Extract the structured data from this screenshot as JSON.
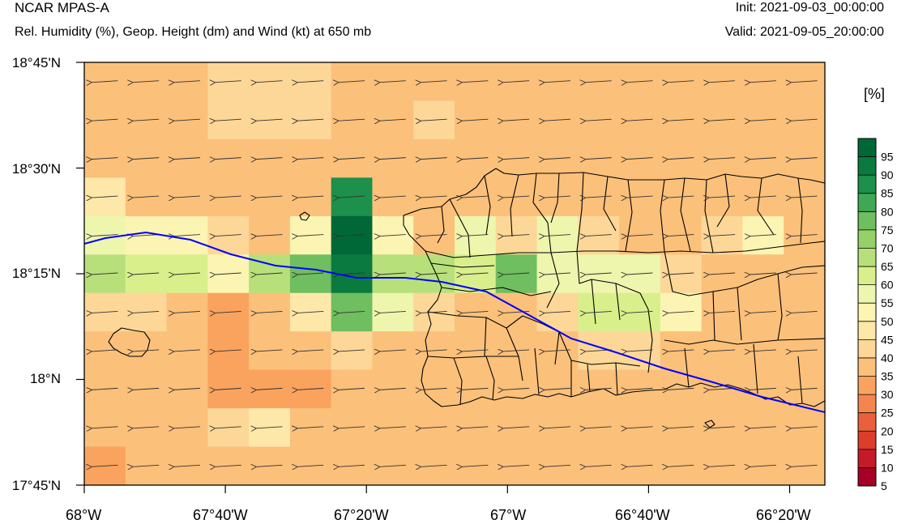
{
  "header": {
    "model": "NCAR MPAS-A",
    "subtitle": "Rel. Humidity (%), Geop. Height (dm) and Wind (kt) at 650 mb",
    "init": "Init: 2021-09-03_00:00:00",
    "valid": "Valid: 2021-09-05_20:00:00"
  },
  "axes": {
    "lat_labels": [
      "18°45'N",
      "18°30'N",
      "18°15'N",
      "18°N",
      "17°45'N"
    ],
    "lon_labels": [
      "68°W",
      "67°40'W",
      "67°20'W",
      "67°W",
      "66°40'W",
      "66°20'W"
    ]
  },
  "colorbar": {
    "unit": "[%]",
    "labels": [
      "95",
      "90",
      "85",
      "80",
      "75",
      "70",
      "65",
      "60",
      "55",
      "50",
      "45",
      "40",
      "35",
      "30",
      "25",
      "20",
      "15",
      "10",
      "5"
    ],
    "colors": [
      "#a50026",
      "#c51a2a",
      "#dd3d2d",
      "#ec5f3c",
      "#f5854f",
      "#f9a35e",
      "#fbc07a",
      "#fdd797",
      "#fee8a9",
      "#fcf4b2",
      "#eef5ad",
      "#d9ef8b",
      "#b8e07a",
      "#96d068",
      "#6fbe5f",
      "#3fa854",
      "#1d904c",
      "#0b7a3e",
      "#006837"
    ]
  },
  "field": {
    "rows": [
      [
        31,
        34,
        34,
        38,
        38,
        38,
        34,
        34,
        34,
        34,
        34,
        34,
        34,
        34,
        34,
        34,
        34,
        30
      ],
      [
        31,
        34,
        34,
        38,
        38,
        38,
        34,
        34,
        38,
        34,
        34,
        34,
        34,
        34,
        34,
        34,
        34,
        30
      ],
      [
        34,
        34,
        34,
        34,
        34,
        34,
        30,
        34,
        34,
        34,
        34,
        34,
        34,
        34,
        34,
        34,
        34,
        30
      ],
      [
        44,
        34,
        34,
        34,
        34,
        34,
        82,
        30,
        34,
        34,
        34,
        34,
        34,
        34,
        34,
        34,
        34,
        34
      ],
      [
        50,
        46,
        46,
        38,
        30,
        46,
        95,
        46,
        34,
        50,
        38,
        54,
        38,
        34,
        34,
        38,
        46,
        34
      ],
      [
        60,
        57,
        57,
        46,
        62,
        72,
        88,
        60,
        62,
        57,
        72,
        50,
        50,
        50,
        38,
        34,
        34,
        34
      ],
      [
        38,
        38,
        30,
        26,
        30,
        44,
        72,
        54,
        38,
        30,
        30,
        38,
        57,
        57,
        46,
        34,
        34,
        34
      ],
      [
        34,
        34,
        34,
        26,
        34,
        34,
        38,
        34,
        30,
        34,
        34,
        34,
        38,
        38,
        34,
        34,
        34,
        34
      ],
      [
        34,
        34,
        30,
        26,
        26,
        26,
        34,
        34,
        30,
        34,
        30,
        34,
        34,
        34,
        34,
        34,
        34,
        34
      ],
      [
        34,
        34,
        34,
        38,
        44,
        34,
        34,
        34,
        30,
        30,
        30,
        30,
        30,
        30,
        30,
        30,
        30,
        30
      ],
      [
        26,
        34,
        34,
        34,
        34,
        34,
        34,
        34,
        30,
        30,
        30,
        30,
        30,
        30,
        30,
        30,
        30,
        30
      ]
    ]
  }
}
